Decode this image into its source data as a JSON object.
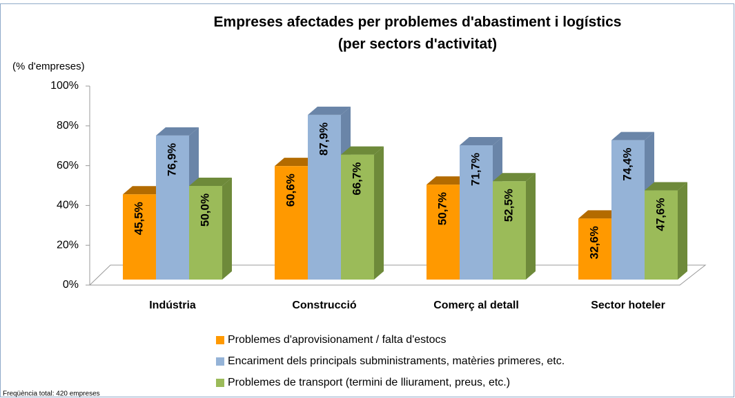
{
  "chart_data": {
    "type": "bar3d",
    "title": "Empreses afectades per problemes d'abastiment i logístics",
    "subtitle": "(per sectors d'activitat)",
    "ylabel": "(% d'empreses)",
    "footnote": "Freqüència total: 420 empreses",
    "categories": [
      "Indústria",
      "Construcció",
      "Comerç al detall",
      "Sector hoteler"
    ],
    "series": [
      {
        "name": "Problemes d'aprovisionament / falta d'estocs",
        "color": "#FF9900",
        "side": "#B36B00",
        "values": [
          45.5,
          60.6,
          50.7,
          32.6
        ],
        "value_labels": [
          "45,5%",
          "60,6%",
          "50,7%",
          "32,6%"
        ]
      },
      {
        "name": "Encariment dels principals subministraments, matèries primeres, etc.",
        "color": "#95B3D7",
        "side": "#6A85A8",
        "values": [
          76.9,
          87.9,
          71.7,
          74.4
        ],
        "value_labels": [
          "76,9%",
          "87,9%",
          "71,7%",
          "74,4%"
        ]
      },
      {
        "name": "Problemes de transport (termini de lliurament, preus, etc.)",
        "color": "#9BBB59",
        "side": "#6E8A3A",
        "values": [
          50.0,
          66.7,
          52.5,
          47.6
        ],
        "value_labels": [
          "50,0%",
          "66,7%",
          "52,5%",
          "47,6%"
        ]
      }
    ],
    "ylim": [
      0,
      100
    ],
    "yticks": [
      {
        "value": 0,
        "label": "0%"
      },
      {
        "value": 20,
        "label": "20%"
      },
      {
        "value": 40,
        "label": "40%"
      },
      {
        "value": 60,
        "label": "60%"
      },
      {
        "value": 80,
        "label": "80%"
      },
      {
        "value": 100,
        "label": "100%"
      }
    ]
  }
}
